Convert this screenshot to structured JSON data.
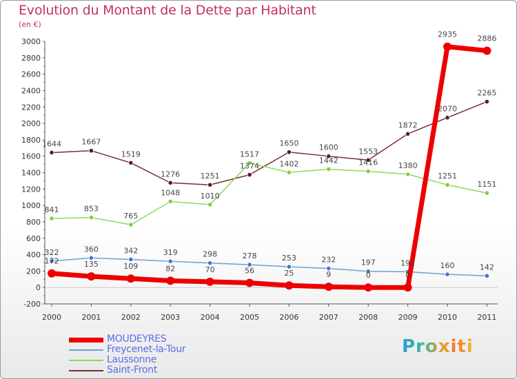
{
  "header": {
    "title": "Evolution du Montant de la Dette par Habitant",
    "subtitle": "(en €)"
  },
  "logo_text": "Proxiti",
  "chart_data": {
    "type": "line",
    "title": "Evolution du Montant de la Dette par Habitant",
    "subtitle": "(en €)",
    "xlabel": "",
    "ylabel": "",
    "categories": [
      "2000",
      "2001",
      "2002",
      "2003",
      "2004",
      "2005",
      "2006",
      "2007",
      "2008",
      "2009",
      "2010",
      "2011"
    ],
    "ylim": [
      -200,
      3000
    ],
    "yticks": [
      -200,
      0,
      200,
      400,
      600,
      800,
      1000,
      1200,
      1400,
      1600,
      1800,
      2000,
      2200,
      2400,
      2600,
      2800,
      3000
    ],
    "grid": false,
    "legend_position": "bottom-left",
    "series": [
      {
        "name": "Saint-Front",
        "color": "#7a2a36",
        "marker": "#5a1a22",
        "width": 1.5,
        "values": [
          1644,
          1667,
          1519,
          1276,
          1251,
          1374,
          1650,
          1600,
          1553,
          1872,
          2070,
          2265
        ],
        "labels": [
          "1644",
          "1667",
          "1519",
          "1276",
          "1251",
          "1374",
          "1650",
          "1600",
          "1553",
          "1872",
          "2070",
          "2265"
        ]
      },
      {
        "name": "Laussonne",
        "color": "#8ed85a",
        "marker": "#7cd040",
        "width": 1.5,
        "values": [
          841,
          853,
          765,
          1048,
          1010,
          1517,
          1402,
          1442,
          1416,
          1380,
          1251,
          1151
        ],
        "labels": [
          "841",
          "853",
          "765",
          "1048",
          "1010",
          "1517",
          "1402",
          "1442",
          "1416",
          "1380",
          "1251",
          "1151"
        ]
      },
      {
        "name": "Freycenet-la-Tour",
        "color": "#6aa0d0",
        "marker": "#3a7ac8",
        "width": 1.5,
        "values": [
          322,
          360,
          342,
          319,
          298,
          278,
          253,
          232,
          197,
          192,
          160,
          142
        ],
        "labels": [
          "322",
          "360",
          "342",
          "319",
          "298",
          "278",
          "253",
          "232",
          "197",
          "192",
          "160",
          "142"
        ]
      },
      {
        "name": "MOUDEYRES",
        "color": "#ee0000",
        "marker": "#ee0000",
        "width": 7,
        "values": [
          172,
          135,
          109,
          82,
          70,
          56,
          25,
          9,
          0,
          0,
          2935,
          2886
        ],
        "labels": [
          "172",
          "135",
          "109",
          "82",
          "70",
          "56",
          "25",
          "9",
          "0",
          "0",
          "2935",
          "2886"
        ]
      }
    ],
    "legend": [
      {
        "name": "MOUDEYRES",
        "color": "#ee0000",
        "thickness": 7
      },
      {
        "name": "Freycenet-la-Tour",
        "color": "#6aa0d0",
        "thickness": 2
      },
      {
        "name": "Laussonne",
        "color": "#8ed85a",
        "thickness": 2
      },
      {
        "name": "Saint-Front",
        "color": "#7a2a36",
        "thickness": 2
      }
    ]
  }
}
